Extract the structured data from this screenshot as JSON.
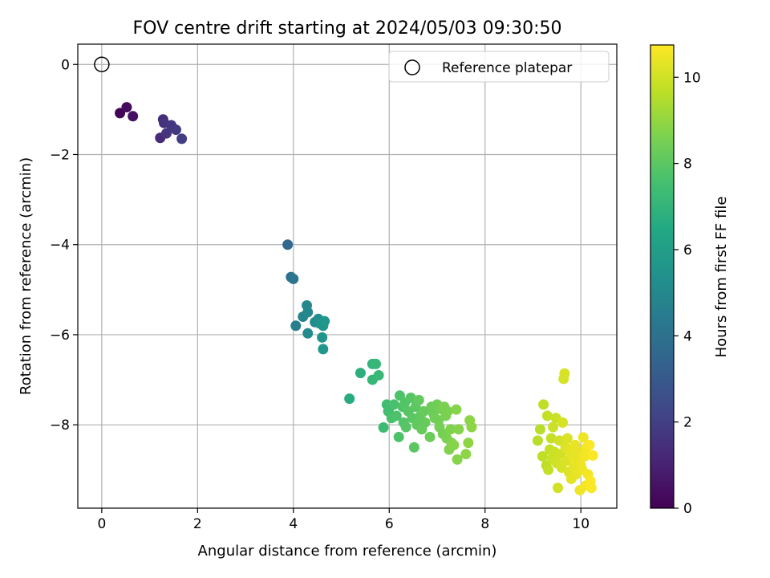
{
  "chart_data": {
    "type": "scatter",
    "title": "FOV centre drift starting at 2024/05/03 09:30:50",
    "xlabel": "Angular distance from reference (arcmin)",
    "ylabel": "Rotation from reference (arcmin)",
    "xlim": [
      -0.5,
      10.75
    ],
    "ylim": [
      -9.85,
      0.45
    ],
    "xticks": [
      0,
      2,
      4,
      6,
      8,
      10
    ],
    "yticks": [
      0,
      -2,
      -4,
      -6,
      -8
    ],
    "grid": true,
    "legend": {
      "position": "top-right",
      "entries": [
        "Reference platepar"
      ]
    },
    "colorbar": {
      "label": "Hours from first FF file",
      "range": [
        0,
        10.75
      ],
      "ticks": [
        0,
        2,
        4,
        6,
        8,
        10
      ],
      "colormap": "viridis"
    },
    "reference": {
      "x": 0,
      "y": 0
    },
    "series": [
      {
        "points": [
          [
            0.38,
            -1.08,
            0.1
          ],
          [
            0.52,
            -0.95,
            0.3
          ],
          [
            0.65,
            -1.15,
            0.5
          ],
          [
            1.22,
            -1.63,
            1.3
          ],
          [
            1.28,
            -1.22,
            1.4
          ],
          [
            1.3,
            -1.3,
            1.5
          ],
          [
            1.35,
            -1.53,
            1.6
          ],
          [
            1.45,
            -1.35,
            1.7
          ],
          [
            1.55,
            -1.45,
            1.8
          ],
          [
            1.67,
            -1.65,
            1.9
          ],
          [
            3.88,
            -4.0,
            3.6
          ],
          [
            3.95,
            -4.72,
            4.0
          ],
          [
            4.0,
            -4.76,
            4.2
          ],
          [
            4.05,
            -5.8,
            4.6
          ],
          [
            4.2,
            -5.6,
            4.8
          ],
          [
            4.28,
            -5.35,
            5.0
          ],
          [
            4.3,
            -5.5,
            5.0
          ],
          [
            4.3,
            -5.97,
            5.1
          ],
          [
            4.45,
            -5.72,
            5.2
          ],
          [
            4.52,
            -5.65,
            5.3
          ],
          [
            4.55,
            -5.75,
            5.4
          ],
          [
            4.6,
            -6.06,
            5.5
          ],
          [
            4.62,
            -5.8,
            5.5
          ],
          [
            4.62,
            -6.32,
            5.6
          ],
          [
            4.65,
            -5.7,
            5.6
          ],
          [
            5.17,
            -7.42,
            6.6
          ],
          [
            5.4,
            -6.85,
            6.8
          ],
          [
            5.65,
            -6.65,
            7.0
          ],
          [
            5.65,
            -7.0,
            7.1
          ],
          [
            5.72,
            -6.65,
            7.1
          ],
          [
            5.78,
            -6.9,
            7.2
          ],
          [
            5.88,
            -8.06,
            7.3
          ],
          [
            5.95,
            -7.55,
            7.4
          ],
          [
            5.98,
            -7.7,
            7.5
          ],
          [
            6.02,
            -7.6,
            7.5
          ],
          [
            6.05,
            -7.85,
            7.6
          ],
          [
            6.1,
            -7.55,
            7.6
          ],
          [
            6.15,
            -7.8,
            7.7
          ],
          [
            6.2,
            -8.27,
            7.7
          ],
          [
            6.22,
            -7.35,
            7.7
          ],
          [
            6.28,
            -7.6,
            7.8
          ],
          [
            6.3,
            -7.95,
            7.8
          ],
          [
            6.33,
            -7.5,
            7.8
          ],
          [
            6.35,
            -8.05,
            7.9
          ],
          [
            6.4,
            -7.7,
            7.9
          ],
          [
            6.45,
            -7.4,
            7.9
          ],
          [
            6.48,
            -7.85,
            8.0
          ],
          [
            6.52,
            -8.5,
            8.0
          ],
          [
            6.55,
            -7.6,
            8.0
          ],
          [
            6.58,
            -8.0,
            8.1
          ],
          [
            6.62,
            -7.45,
            8.1
          ],
          [
            6.65,
            -7.8,
            8.1
          ],
          [
            6.68,
            -8.1,
            8.2
          ],
          [
            6.72,
            -7.7,
            8.2
          ],
          [
            6.75,
            -7.95,
            8.2
          ],
          [
            6.85,
            -8.27,
            8.3
          ],
          [
            6.88,
            -7.6,
            8.3
          ],
          [
            6.92,
            -7.75,
            8.3
          ],
          [
            6.95,
            -7.85,
            8.4
          ],
          [
            7.0,
            -7.55,
            8.4
          ],
          [
            7.03,
            -7.9,
            8.4
          ],
          [
            7.05,
            -8.05,
            8.5
          ],
          [
            7.08,
            -7.65,
            8.5
          ],
          [
            7.12,
            -8.2,
            8.5
          ],
          [
            7.15,
            -7.6,
            8.6
          ],
          [
            7.18,
            -7.8,
            8.6
          ],
          [
            7.2,
            -8.3,
            8.6
          ],
          [
            7.22,
            -7.7,
            8.6
          ],
          [
            7.25,
            -8.55,
            8.7
          ],
          [
            7.28,
            -8.1,
            8.7
          ],
          [
            7.3,
            -8.4,
            8.7
          ],
          [
            7.35,
            -8.45,
            8.8
          ],
          [
            7.4,
            -7.66,
            8.8
          ],
          [
            7.42,
            -8.77,
            8.8
          ],
          [
            7.45,
            -8.1,
            8.8
          ],
          [
            7.6,
            -8.65,
            8.9
          ],
          [
            7.65,
            -8.4,
            8.9
          ],
          [
            7.68,
            -7.9,
            8.9
          ],
          [
            7.72,
            -8.05,
            8.9
          ],
          [
            9.1,
            -8.35,
            9.6
          ],
          [
            9.15,
            -8.1,
            9.6
          ],
          [
            9.2,
            -8.7,
            9.7
          ],
          [
            9.22,
            -7.55,
            9.7
          ],
          [
            9.28,
            -8.9,
            9.7
          ],
          [
            9.3,
            -7.8,
            9.8
          ],
          [
            9.32,
            -9.0,
            9.8
          ],
          [
            9.35,
            -8.55,
            9.8
          ],
          [
            9.38,
            -8.3,
            9.8
          ],
          [
            9.4,
            -8.75,
            9.9
          ],
          [
            9.42,
            -8.05,
            9.9
          ],
          [
            9.45,
            -8.6,
            9.9
          ],
          [
            9.48,
            -7.85,
            9.9
          ],
          [
            9.5,
            -8.85,
            10.0
          ],
          [
            9.52,
            -9.4,
            10.0
          ],
          [
            9.55,
            -8.35,
            10.0
          ],
          [
            9.58,
            -8.65,
            10.0
          ],
          [
            9.6,
            -8.95,
            10.1
          ],
          [
            9.62,
            -7.95,
            10.1
          ],
          [
            9.64,
            -6.98,
            10.1
          ],
          [
            9.66,
            -6.86,
            10.1
          ],
          [
            9.68,
            -8.5,
            10.2
          ],
          [
            9.7,
            -8.8,
            10.2
          ],
          [
            9.72,
            -8.3,
            10.2
          ],
          [
            9.75,
            -9.05,
            10.2
          ],
          [
            9.78,
            -8.6,
            10.3
          ],
          [
            9.8,
            -9.2,
            10.3
          ],
          [
            9.82,
            -8.7,
            10.3
          ],
          [
            9.85,
            -8.95,
            10.3
          ],
          [
            9.88,
            -8.45,
            10.4
          ],
          [
            9.9,
            -9.1,
            10.4
          ],
          [
            9.92,
            -8.8,
            10.4
          ],
          [
            9.95,
            -8.6,
            10.4
          ],
          [
            9.98,
            -9.45,
            10.5
          ],
          [
            10.0,
            -8.9,
            10.5
          ],
          [
            10.03,
            -9.0,
            10.5
          ],
          [
            10.05,
            -8.28,
            10.5
          ],
          [
            10.08,
            -8.7,
            10.6
          ],
          [
            10.1,
            -9.35,
            10.6
          ],
          [
            10.12,
            -8.5,
            10.6
          ],
          [
            10.15,
            -9.1,
            10.6
          ],
          [
            10.18,
            -8.45,
            10.7
          ],
          [
            10.2,
            -9.25,
            10.7
          ],
          [
            10.22,
            -9.4,
            10.7
          ],
          [
            10.25,
            -8.68,
            10.7
          ]
        ]
      }
    ]
  }
}
